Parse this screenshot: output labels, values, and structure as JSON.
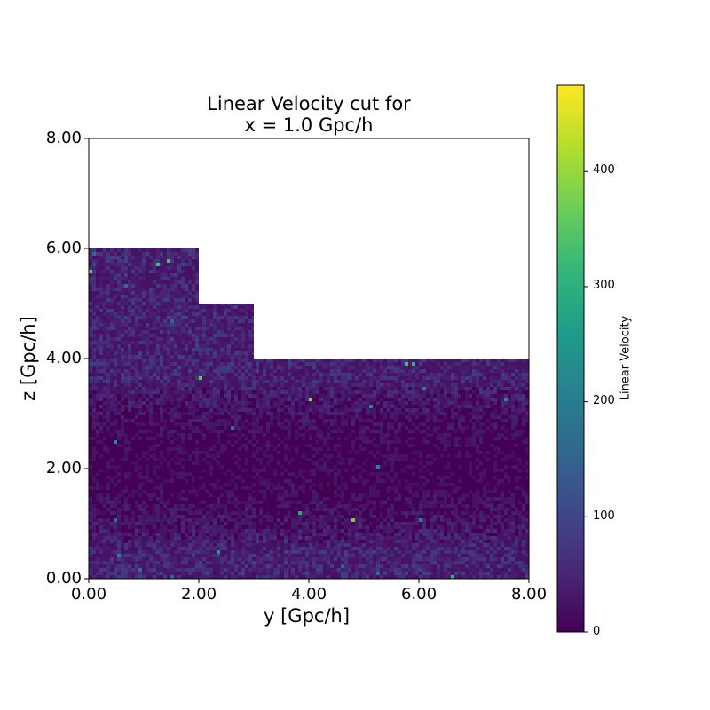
{
  "chart_data": {
    "type": "heatmap",
    "title_line1": "Linear Velocity cut for",
    "title_line2": "x = 1.0 Gpc/h",
    "xlabel": "y [Gpc/h]",
    "ylabel": "z [Gpc/h]",
    "xlim": [
      0,
      8
    ],
    "ylim": [
      0,
      8
    ],
    "xticks": [
      "0.00",
      "2.00",
      "4.00",
      "6.00",
      "8.00"
    ],
    "yticks": [
      "0.00",
      "2.00",
      "4.00",
      "6.00",
      "8.00"
    ],
    "colormap": "viridis",
    "data_extent": [
      {
        "y_range": [
          0,
          2
        ],
        "z_max": 6
      },
      {
        "y_range": [
          2,
          3
        ],
        "z_max": 5
      },
      {
        "y_range": [
          3,
          8
        ],
        "z_max": 4
      }
    ],
    "background_level": "low (dark purple), minimum band near z = 2",
    "colorbar": {
      "label": "Linear Velocity",
      "range": [
        0,
        475
      ],
      "ticks": [
        "0",
        "100",
        "200",
        "300",
        "400"
      ]
    }
  },
  "colors": {
    "viridis": [
      "#440154",
      "#482878",
      "#3e4989",
      "#31688e",
      "#26828e",
      "#1f9e89",
      "#35b779",
      "#6ece58",
      "#b5de2b",
      "#fde725"
    ]
  }
}
